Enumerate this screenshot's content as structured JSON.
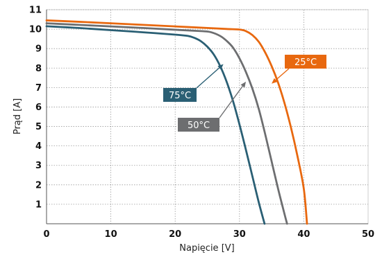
{
  "chart_data": {
    "type": "line",
    "title": "",
    "xlabel": "Napięcie [V]",
    "ylabel": "Prąd [A]",
    "xlim": [
      0,
      50
    ],
    "ylim": [
      0,
      11
    ],
    "xticks": [
      0,
      10,
      20,
      30,
      40,
      50
    ],
    "yticks": [
      1,
      2,
      3,
      4,
      5,
      6,
      7,
      8,
      9,
      10,
      11
    ],
    "grid": "dotted",
    "series": [
      {
        "name": "25°C",
        "color": "#e8680f",
        "x": [
          0,
          5,
          10,
          15,
          20,
          25,
          28,
          30,
          31,
          32,
          33,
          34,
          35,
          36,
          37,
          38,
          39,
          40,
          40.5
        ],
        "y": [
          10.45,
          10.38,
          10.3,
          10.22,
          10.14,
          10.06,
          10.01,
          9.98,
          9.9,
          9.7,
          9.35,
          8.8,
          8.1,
          7.25,
          6.2,
          4.95,
          3.5,
          1.8,
          0.0
        ]
      },
      {
        "name": "50°C",
        "color": "#6d6e70",
        "x": [
          0,
          5,
          10,
          15,
          20,
          24,
          25.5,
          27,
          28,
          29,
          30,
          31,
          32,
          33,
          34,
          35,
          36,
          37,
          37.4
        ],
        "y": [
          10.3,
          10.22,
          10.14,
          10.06,
          9.97,
          9.9,
          9.85,
          9.65,
          9.4,
          9.05,
          8.5,
          7.8,
          6.95,
          5.9,
          4.6,
          3.2,
          1.8,
          0.5,
          0.0
        ]
      },
      {
        "name": "75°C",
        "color": "#2a5f74",
        "x": [
          0,
          5,
          10,
          15,
          20,
          22,
          23,
          24,
          25,
          26,
          27,
          28,
          29,
          30,
          31,
          32,
          33,
          33.9
        ],
        "y": [
          10.15,
          10.06,
          9.95,
          9.84,
          9.72,
          9.65,
          9.55,
          9.38,
          9.1,
          8.7,
          8.1,
          7.3,
          6.3,
          5.1,
          3.8,
          2.45,
          1.1,
          0.0
        ]
      }
    ],
    "annotations": [
      {
        "label": "25°C",
        "color": "#e8680f",
        "arrow_to": [
          35,
          7.2
        ]
      },
      {
        "label": "50°C",
        "color": "#6d6e70",
        "arrow_to": [
          31,
          7.3
        ]
      },
      {
        "label": "75°C",
        "color": "#2a5f74",
        "arrow_to": [
          27.5,
          8.2
        ]
      }
    ]
  }
}
